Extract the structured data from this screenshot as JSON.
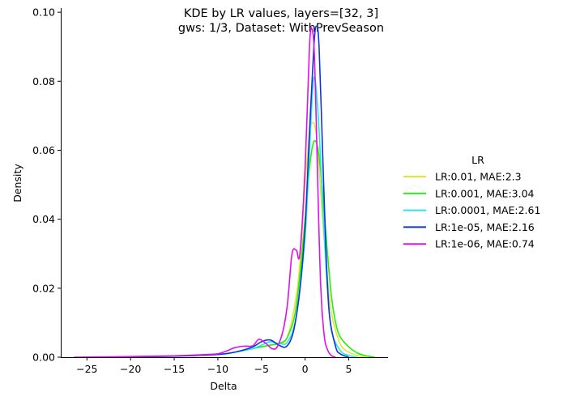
{
  "chart_data": {
    "type": "line",
    "title_line1": "KDE by LR values, layers=[32, 3]",
    "title_line2": "gws: 1/3, Dataset: WithPrevSeason",
    "xlabel": "Delta",
    "ylabel": "Density",
    "xlim": [
      -28,
      9.5
    ],
    "ylim": [
      0,
      0.1005
    ],
    "xticks": [
      -25,
      -20,
      -15,
      -10,
      -5,
      0,
      5
    ],
    "yticks": [
      0.0,
      0.02,
      0.04,
      0.06,
      0.08,
      0.1
    ],
    "ytick_labels": [
      "0.00",
      "0.02",
      "0.04",
      "0.06",
      "0.08",
      "0.10"
    ],
    "grid": false,
    "legend": {
      "title": "LR",
      "placement": "right-outside"
    },
    "series": [
      {
        "name": "LR:0.01, MAE:2.3",
        "color": "#e6e62a",
        "x": [
          -23,
          -15,
          -10,
          -8,
          -6,
          -5,
          -4,
          -3,
          -2,
          -1,
          -0.5,
          0,
          0.5,
          0.8,
          1.2,
          1.6,
          2,
          2.5,
          3,
          4,
          5,
          6,
          7
        ],
        "y": [
          0,
          0.0003,
          0.0008,
          0.0015,
          0.0025,
          0.003,
          0.0035,
          0.004,
          0.006,
          0.018,
          0.03,
          0.05,
          0.065,
          0.068,
          0.066,
          0.055,
          0.04,
          0.025,
          0.013,
          0.004,
          0.0015,
          0.0005,
          0
        ]
      },
      {
        "name": "LR:0.001, MAE:3.04",
        "color": "#22ee11",
        "x": [
          -23,
          -15,
          -10,
          -8,
          -6,
          -5,
          -4,
          -3,
          -2,
          -1,
          0,
          0.5,
          1,
          1.5,
          2,
          2.5,
          3,
          3.5,
          4,
          5,
          6,
          7,
          8
        ],
        "y": [
          0,
          0.0004,
          0.0008,
          0.0015,
          0.0025,
          0.003,
          0.0035,
          0.004,
          0.006,
          0.015,
          0.04,
          0.055,
          0.0625,
          0.06,
          0.048,
          0.032,
          0.018,
          0.01,
          0.006,
          0.003,
          0.0012,
          0.0004,
          0
        ]
      },
      {
        "name": "LR:0.0001, MAE:2.61",
        "color": "#22e6e6",
        "x": [
          -23,
          -15,
          -10,
          -8,
          -6,
          -5,
          -4,
          -3,
          -2,
          -1,
          0,
          0.5,
          1,
          1.5,
          2,
          2.5,
          3,
          4,
          5,
          6
        ],
        "y": [
          0,
          0.0003,
          0.0008,
          0.0015,
          0.0025,
          0.0035,
          0.0045,
          0.004,
          0.0045,
          0.012,
          0.035,
          0.06,
          0.081,
          0.07,
          0.045,
          0.022,
          0.008,
          0.002,
          0.0005,
          0
        ]
      },
      {
        "name": "LR:1e-05, MAE:2.16",
        "color": "#1133dd",
        "x": [
          -23,
          -15,
          -10,
          -8,
          -6,
          -5,
          -4,
          -3,
          -2.2,
          -1.5,
          -1,
          -0.5,
          0,
          0.5,
          1,
          1.3,
          1.6,
          2,
          2.4,
          2.8,
          3.5,
          4,
          5
        ],
        "y": [
          0,
          0.0003,
          0.0008,
          0.0015,
          0.003,
          0.0045,
          0.005,
          0.0035,
          0.003,
          0.006,
          0.012,
          0.022,
          0.038,
          0.065,
          0.09,
          0.096,
          0.09,
          0.06,
          0.03,
          0.012,
          0.003,
          0.001,
          0
        ]
      },
      {
        "name": "LR:1e-06, MAE:0.74",
        "color": "#dd11ee",
        "x": [
          -26.5,
          -20,
          -15,
          -12,
          -10,
          -9,
          -8,
          -7,
          -6,
          -5.3,
          -4.5,
          -3.8,
          -3.2,
          -2.5,
          -2,
          -1.5,
          -1,
          -0.6,
          0,
          0.5,
          0.8,
          1.1,
          1.5,
          1.8,
          2.2,
          2.6,
          3,
          3.5
        ],
        "y": [
          0,
          0.0002,
          0.0004,
          0.0007,
          0.001,
          0.0018,
          0.0028,
          0.0032,
          0.0033,
          0.0052,
          0.004,
          0.0025,
          0.003,
          0.008,
          0.016,
          0.03,
          0.031,
          0.03,
          0.055,
          0.09,
          0.095,
          0.085,
          0.045,
          0.02,
          0.006,
          0.002,
          0.0005,
          0
        ]
      }
    ]
  }
}
